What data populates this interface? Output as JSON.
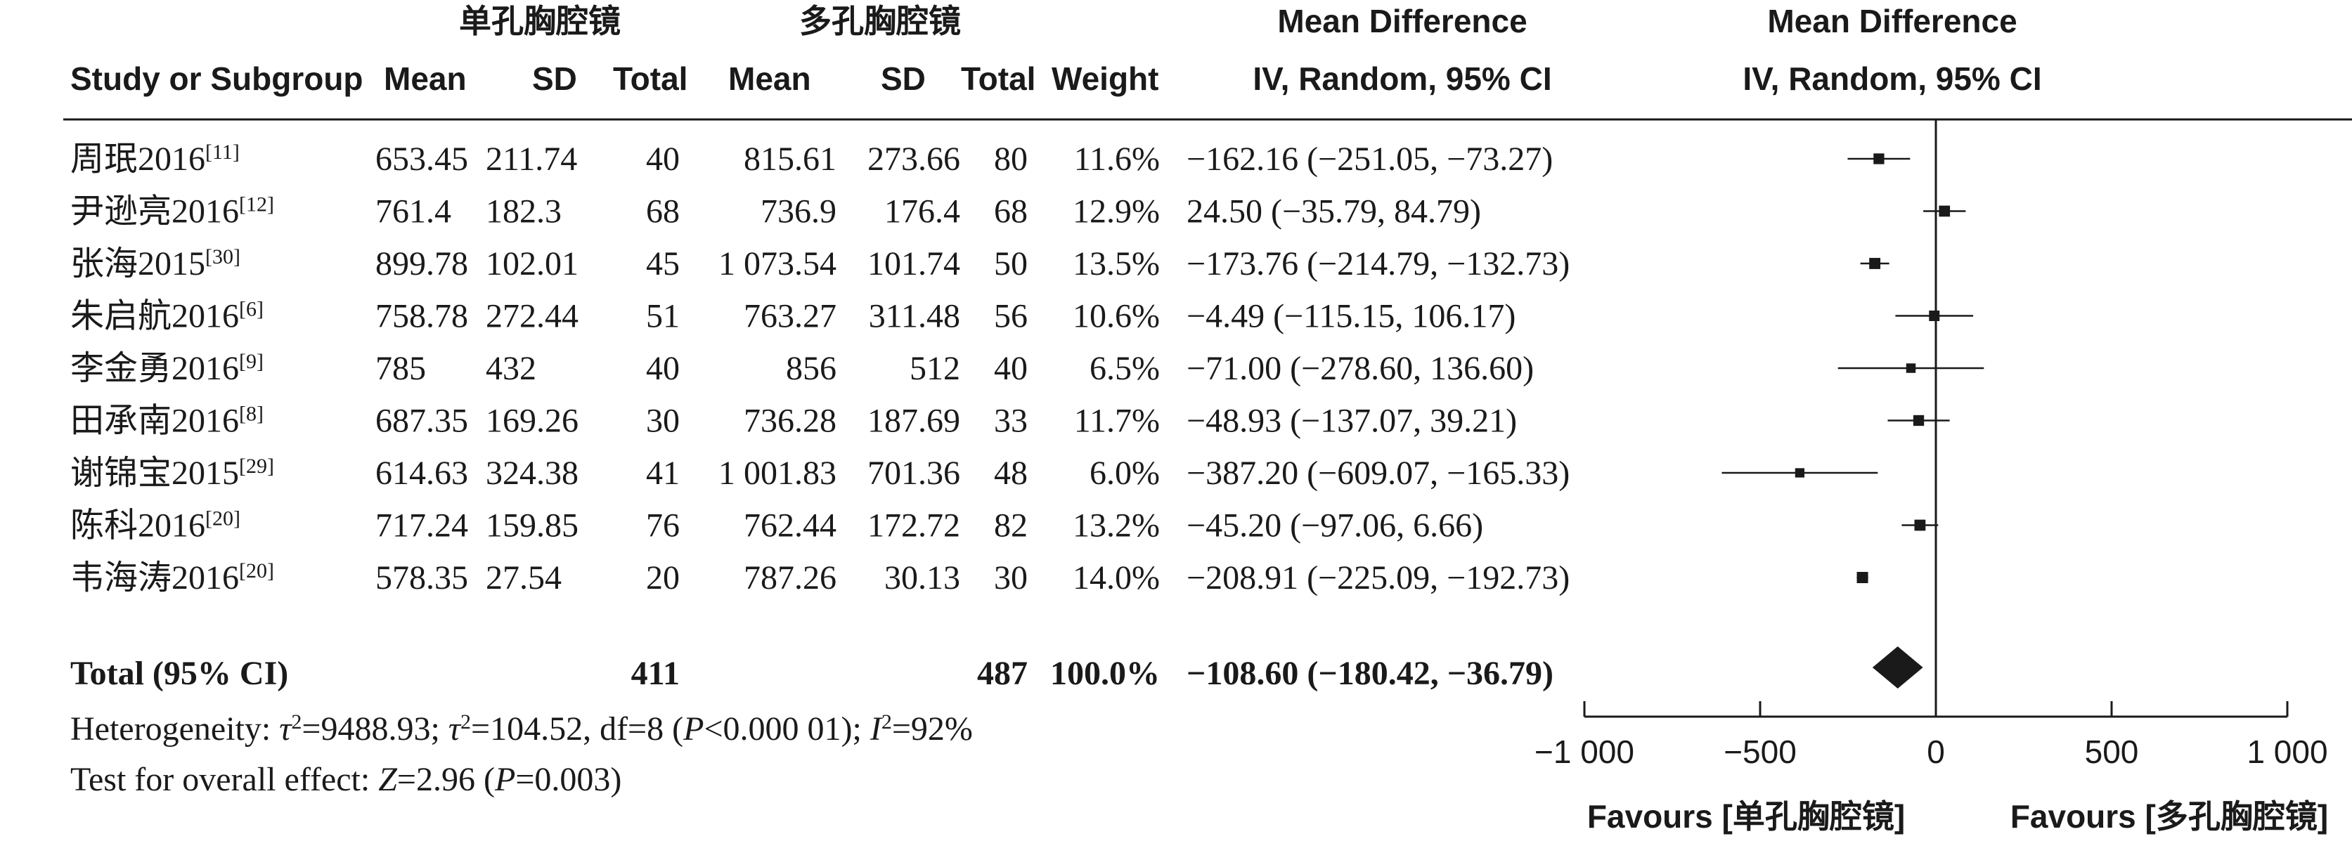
{
  "chart_data": {
    "type": "forest",
    "group_labels": {
      "experimental": "单孔胸腔镜",
      "control": "多孔胸腔镜"
    },
    "header": {
      "study": "Study or Subgroup",
      "mean": "Mean",
      "sd": "SD",
      "total": "Total",
      "weight": "Weight",
      "effect_title": "Mean Difference",
      "effect_method": "IV, Random, 95% CI"
    },
    "studies": [
      {
        "name": "周珉2016",
        "ref": "[11]",
        "exp_mean": "653.45",
        "exp_sd": "211.74",
        "exp_total": "40",
        "ctl_mean": "815.61",
        "ctl_sd": "273.66",
        "ctl_total": "80",
        "weight": "11.6%",
        "ci_text": "−162.16 (−251.05, −73.27)",
        "md": -162.16,
        "lo": -251.05,
        "hi": -73.27
      },
      {
        "name": "尹逊亮2016",
        "ref": "[12]",
        "exp_mean": "761.4",
        "exp_sd": "182.3",
        "exp_total": "68",
        "ctl_mean": "736.9",
        "ctl_sd": "176.4",
        "ctl_total": "68",
        "weight": "12.9%",
        "ci_text": "24.50 (−35.79, 84.79)",
        "md": 24.5,
        "lo": -35.79,
        "hi": 84.79
      },
      {
        "name": "张海2015",
        "ref": "[30]",
        "exp_mean": "899.78",
        "exp_sd": "102.01",
        "exp_total": "45",
        "ctl_mean": "1 073.54",
        "ctl_sd": "101.74",
        "ctl_total": "50",
        "weight": "13.5%",
        "ci_text": "−173.76 (−214.79, −132.73)",
        "md": -173.76,
        "lo": -214.79,
        "hi": -132.73
      },
      {
        "name": "朱启航2016",
        "ref": "[6]",
        "exp_mean": "758.78",
        "exp_sd": "272.44",
        "exp_total": "51",
        "ctl_mean": "763.27",
        "ctl_sd": "311.48",
        "ctl_total": "56",
        "weight": "10.6%",
        "ci_text": "−4.49 (−115.15, 106.17)",
        "md": -4.49,
        "lo": -115.15,
        "hi": 106.17
      },
      {
        "name": "李金勇2016",
        "ref": "[9]",
        "exp_mean": "785",
        "exp_sd": "432",
        "exp_total": "40",
        "ctl_mean": "856",
        "ctl_sd": "512",
        "ctl_total": "40",
        "weight": "6.5%",
        "ci_text": "−71.00 (−278.60, 136.60)",
        "md": -71.0,
        "lo": -278.6,
        "hi": 136.6
      },
      {
        "name": "田承南2016",
        "ref": "[8]",
        "exp_mean": "687.35",
        "exp_sd": "169.26",
        "exp_total": "30",
        "ctl_mean": "736.28",
        "ctl_sd": "187.69",
        "ctl_total": "33",
        "weight": "11.7%",
        "ci_text": "−48.93 (−137.07, 39.21)",
        "md": -48.93,
        "lo": -137.07,
        "hi": 39.21
      },
      {
        "name": "谢锦宝2015",
        "ref": "[29]",
        "exp_mean": "614.63",
        "exp_sd": "324.38",
        "exp_total": "41",
        "ctl_mean": "1 001.83",
        "ctl_sd": "701.36",
        "ctl_total": "48",
        "weight": "6.0%",
        "ci_text": "−387.20 (−609.07, −165.33)",
        "md": -387.2,
        "lo": -609.07,
        "hi": -165.33
      },
      {
        "name": "陈科2016",
        "ref": "[20]",
        "exp_mean": "717.24",
        "exp_sd": "159.85",
        "exp_total": "76",
        "ctl_mean": "762.44",
        "ctl_sd": "172.72",
        "ctl_total": "82",
        "weight": "13.2%",
        "ci_text": "−45.20 (−97.06, 6.66)",
        "md": -45.2,
        "lo": -97.06,
        "hi": 6.66
      },
      {
        "name": "韦海涛2016",
        "ref": "[20]",
        "exp_mean": "578.35",
        "exp_sd": "27.54",
        "exp_total": "20",
        "ctl_mean": "787.26",
        "ctl_sd": "30.13",
        "ctl_total": "30",
        "weight": "14.0%",
        "ci_text": "−208.91 (−225.09, −192.73)",
        "md": -208.91,
        "lo": -225.09,
        "hi": -192.73
      }
    ],
    "total": {
      "label": "Total (95% CI)",
      "exp_total": "411",
      "ctl_total": "487",
      "weight": "100.0%",
      "ci_text": "−108.60 (−180.42, −36.79)",
      "md": -108.6,
      "lo": -180.42,
      "hi": -36.79
    },
    "heterogeneity": {
      "prefix": "Heterogeneity: ",
      "tau_sym": "τ",
      "sq": "2",
      "tau_val": "=9488.93; ",
      "chi_sym": "τ",
      "chi_rest": "=104.52, df=8 (",
      "p_sym": "P",
      "p_rest": "<0.000 01); ",
      "i_sym": "I",
      "i_rest": "=92%"
    },
    "overall": {
      "prefix": "Test for overall effect: ",
      "z_sym": "Z",
      "z_rest": "=2.96 (",
      "p_sym": "P",
      "p_rest": "=0.003)"
    },
    "axis": {
      "xlim": [
        -1000,
        1000
      ],
      "ticks": [
        -1000,
        -500,
        0,
        500,
        1000
      ],
      "tick_labels": [
        "−1 000",
        "−500",
        "0",
        "500",
        "1 000"
      ]
    },
    "favours_left": "Favours [单孔胸腔镜]",
    "favours_right": "Favours [多孔胸腔镜]",
    "colors": {
      "ink": "#1a1a1a",
      "background": "#ffffff"
    }
  }
}
